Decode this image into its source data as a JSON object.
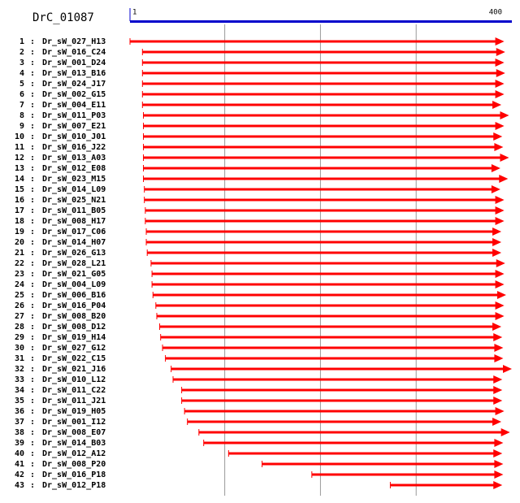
{
  "title": "DrC_01087",
  "scale": {
    "start": 1,
    "end": 400
  },
  "gridlines": [
    100,
    200,
    300
  ],
  "separator": ":",
  "color": "#ff0000",
  "axis_color": "#0000cc",
  "rows": [
    {
      "index": 1,
      "name": "Dr_sW_027_H13",
      "start": 1,
      "end": 392
    },
    {
      "index": 2,
      "name": "Dr_sW_016_C24",
      "start": 14,
      "end": 393
    },
    {
      "index": 3,
      "name": "Dr_sW_001_D24",
      "start": 14,
      "end": 392
    },
    {
      "index": 4,
      "name": "Dr_sW_013_B16",
      "start": 14,
      "end": 393
    },
    {
      "index": 5,
      "name": "Dr_sW_024_J17",
      "start": 14,
      "end": 392
    },
    {
      "index": 6,
      "name": "Dr_sW_002_G15",
      "start": 14,
      "end": 392
    },
    {
      "index": 7,
      "name": "Dr_sW_004_E11",
      "start": 14,
      "end": 389
    },
    {
      "index": 8,
      "name": "Dr_sW_011_P03",
      "start": 15,
      "end": 397
    },
    {
      "index": 9,
      "name": "Dr_sW_007_E21",
      "start": 15,
      "end": 392
    },
    {
      "index": 10,
      "name": "Dr_sW_010_J01",
      "start": 15,
      "end": 390
    },
    {
      "index": 11,
      "name": "Dr_sW_016_J22",
      "start": 15,
      "end": 391
    },
    {
      "index": 12,
      "name": "Dr_sW_013_A03",
      "start": 15,
      "end": 397
    },
    {
      "index": 13,
      "name": "Dr_sW_012_E08",
      "start": 15,
      "end": 388
    },
    {
      "index": 14,
      "name": "Dr_sW_023_M15",
      "start": 15,
      "end": 396
    },
    {
      "index": 15,
      "name": "Dr_sW_014_L09",
      "start": 16,
      "end": 388
    },
    {
      "index": 16,
      "name": "Dr_sW_025_N21",
      "start": 16,
      "end": 392
    },
    {
      "index": 17,
      "name": "Dr_sW_011_B05",
      "start": 17,
      "end": 392
    },
    {
      "index": 18,
      "name": "Dr_sW_008_H17",
      "start": 17,
      "end": 392
    },
    {
      "index": 19,
      "name": "Dr_sW_017_C06",
      "start": 18,
      "end": 389
    },
    {
      "index": 20,
      "name": "Dr_sW_014_H07",
      "start": 18,
      "end": 389
    },
    {
      "index": 21,
      "name": "Dr_sW_026_G13",
      "start": 19,
      "end": 389
    },
    {
      "index": 22,
      "name": "Dr_sW_028_L21",
      "start": 23,
      "end": 393
    },
    {
      "index": 23,
      "name": "Dr_sW_021_G05",
      "start": 24,
      "end": 392
    },
    {
      "index": 24,
      "name": "Dr_sW_004_L09",
      "start": 24,
      "end": 392
    },
    {
      "index": 25,
      "name": "Dr_sW_006_B16",
      "start": 25,
      "end": 394
    },
    {
      "index": 26,
      "name": "Dr_sW_016_P04",
      "start": 28,
      "end": 392
    },
    {
      "index": 27,
      "name": "Dr_sW_008_B20",
      "start": 29,
      "end": 392
    },
    {
      "index": 28,
      "name": "Dr_sW_008_D12",
      "start": 32,
      "end": 389
    },
    {
      "index": 29,
      "name": "Dr_sW_019_H14",
      "start": 33,
      "end": 390
    },
    {
      "index": 30,
      "name": "Dr_sW_027_G12",
      "start": 35,
      "end": 391
    },
    {
      "index": 31,
      "name": "Dr_sW_022_C15",
      "start": 38,
      "end": 391
    },
    {
      "index": 32,
      "name": "Dr_sW_021_J16",
      "start": 44,
      "end": 400
    },
    {
      "index": 33,
      "name": "Dr_sW_010_L12",
      "start": 46,
      "end": 390
    },
    {
      "index": 34,
      "name": "Dr_sW_011_C22",
      "start": 55,
      "end": 390
    },
    {
      "index": 35,
      "name": "Dr_sW_011_J21",
      "start": 55,
      "end": 390
    },
    {
      "index": 36,
      "name": "Dr_sW_019_H05",
      "start": 58,
      "end": 392
    },
    {
      "index": 37,
      "name": "Dr_sW_001_I12",
      "start": 61,
      "end": 389
    },
    {
      "index": 38,
      "name": "Dr_sW_008_E07",
      "start": 73,
      "end": 398
    },
    {
      "index": 39,
      "name": "Dr_sW_014_B03",
      "start": 78,
      "end": 391
    },
    {
      "index": 40,
      "name": "Dr_sW_012_A12",
      "start": 104,
      "end": 390
    },
    {
      "index": 41,
      "name": "Dr_sW_008_P20",
      "start": 139,
      "end": 391
    },
    {
      "index": 42,
      "name": "Dr_sW_016_P18",
      "start": 191,
      "end": 391
    },
    {
      "index": 43,
      "name": "Dr_sW_012_P18",
      "start": 273,
      "end": 390
    }
  ]
}
